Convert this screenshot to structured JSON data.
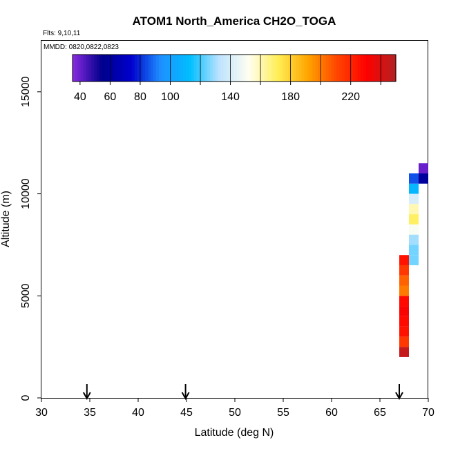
{
  "chart_data": {
    "type": "heatmap",
    "title": "ATOM1 North_America CH2O_TOGA",
    "flights_label": "Flts: 9,10,11",
    "mmdd_label": "MMDD: 0820,0822,0823",
    "xlabel": "Latitude (deg N)",
    "ylabel": "Altitude (m)",
    "xlim": [
      30,
      70
    ],
    "ylim": [
      0,
      17500
    ],
    "x_ticks": [
      "30",
      "35",
      "40",
      "45",
      "50",
      "55",
      "60",
      "65",
      "70"
    ],
    "y_ticks": [
      "0",
      "5000",
      "10000",
      "15000"
    ],
    "colorbar": {
      "range": [
        35,
        250
      ],
      "ticks": [
        "40",
        "60",
        "80",
        "100",
        "140",
        "180",
        "220"
      ],
      "tick_values": [
        40,
        60,
        80,
        100,
        140,
        180,
        220
      ],
      "colors": [
        "#8a2be2",
        "#00008b",
        "#0000cd",
        "#1e90ff",
        "#00bfff",
        "#bfe3ff",
        "#fffff0",
        "#ffee55",
        "#ffa500",
        "#ff4500",
        "#ff0000",
        "#b22222"
      ]
    },
    "arrows_lat": [
      34.7,
      44.9,
      67.0
    ],
    "cells": [
      {
        "lat": 67.5,
        "alt": 2250,
        "value": 245
      },
      {
        "lat": 67.5,
        "alt": 2750,
        "value": 215
      },
      {
        "lat": 67.5,
        "alt": 3250,
        "value": 225
      },
      {
        "lat": 67.5,
        "alt": 3750,
        "value": 228
      },
      {
        "lat": 67.5,
        "alt": 4250,
        "value": 232
      },
      {
        "lat": 67.5,
        "alt": 4750,
        "value": 228
      },
      {
        "lat": 67.5,
        "alt": 5250,
        "value": 200
      },
      {
        "lat": 67.5,
        "alt": 5750,
        "value": 205
      },
      {
        "lat": 67.5,
        "alt": 6250,
        "value": 215
      },
      {
        "lat": 67.5,
        "alt": 6750,
        "value": 225
      },
      {
        "lat": 68.5,
        "alt": 6750,
        "value": 125
      },
      {
        "lat": 68.5,
        "alt": 7250,
        "value": 125
      },
      {
        "lat": 68.5,
        "alt": 7750,
        "value": 130
      },
      {
        "lat": 68.5,
        "alt": 8250,
        "value": 150
      },
      {
        "lat": 68.5,
        "alt": 8750,
        "value": 170
      },
      {
        "lat": 68.5,
        "alt": 9250,
        "value": 160
      },
      {
        "lat": 68.5,
        "alt": 9750,
        "value": 140
      },
      {
        "lat": 68.5,
        "alt": 10250,
        "value": 110
      },
      {
        "lat": 68.5,
        "alt": 10750,
        "value": 85
      },
      {
        "lat": 69.5,
        "alt": 10750,
        "value": 60
      },
      {
        "lat": 69.5,
        "alt": 11250,
        "value": 40
      }
    ]
  }
}
